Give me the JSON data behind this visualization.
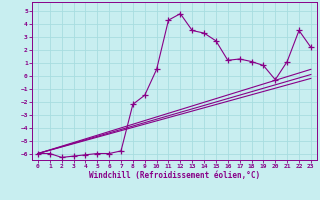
{
  "xlabel": "Windchill (Refroidissement éolien,°C)",
  "background_color": "#c8eef0",
  "grid_color": "#a8dde0",
  "line_color": "#880088",
  "spine_color": "#880088",
  "xlim": [
    -0.5,
    23.5
  ],
  "ylim": [
    -6.5,
    5.7
  ],
  "xticks": [
    0,
    1,
    2,
    3,
    4,
    5,
    6,
    7,
    8,
    9,
    10,
    11,
    12,
    13,
    14,
    15,
    16,
    17,
    18,
    19,
    20,
    21,
    22,
    23
  ],
  "yticks": [
    -6,
    -5,
    -4,
    -3,
    -2,
    -1,
    0,
    1,
    2,
    3,
    4,
    5
  ],
  "main_x": [
    0,
    1,
    2,
    3,
    4,
    5,
    6,
    7,
    8,
    9,
    10,
    11,
    12,
    13,
    14,
    15,
    16,
    17,
    18,
    19,
    20,
    21,
    22,
    23
  ],
  "main_y": [
    -6.0,
    -6.0,
    -6.3,
    -6.2,
    -6.1,
    -6.0,
    -6.0,
    -5.8,
    -2.2,
    -1.5,
    0.5,
    4.3,
    4.8,
    3.5,
    3.3,
    2.7,
    1.2,
    1.3,
    1.1,
    0.8,
    -0.3,
    1.1,
    3.5,
    2.2
  ],
  "line2_x": [
    0,
    23
  ],
  "line2_y": [
    -6.0,
    -0.2
  ],
  "line3_x": [
    0,
    23
  ],
  "line3_y": [
    -6.0,
    0.1
  ],
  "line4_x": [
    0,
    23
  ],
  "line4_y": [
    -6.0,
    0.5
  ]
}
